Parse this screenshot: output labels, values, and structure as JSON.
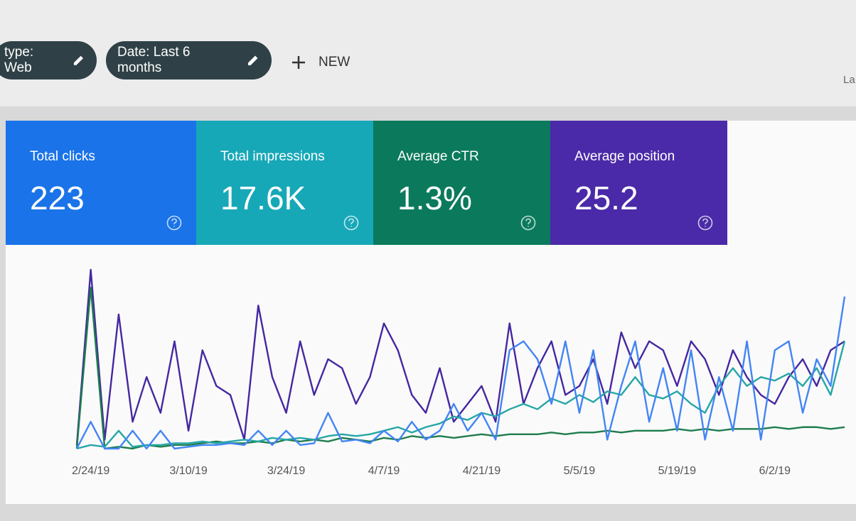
{
  "filters": [
    "type: Web",
    "Date: Last 6 months"
  ],
  "new_button": "NEW",
  "corner_text": "La",
  "cards": [
    {
      "label": "Total clicks",
      "value": "223",
      "color": "#1a73e8"
    },
    {
      "label": "Total impressions",
      "value": "17.6K",
      "color": "#17a8b8"
    },
    {
      "label": "Average CTR",
      "value": "1.3%",
      "color": "#0b7a5c"
    },
    {
      "label": "Average position",
      "value": "25.2",
      "color": "#4a2aa8"
    }
  ],
  "chart_data": {
    "type": "line",
    "x": [
      0,
      2,
      4,
      6,
      8,
      10,
      12,
      14,
      16,
      18,
      20,
      22,
      24,
      26,
      28,
      30,
      32,
      34,
      36,
      38,
      40,
      42,
      44,
      46,
      48,
      50,
      52,
      54,
      56,
      58,
      60,
      62,
      64,
      66,
      68,
      70,
      72,
      74,
      76,
      78,
      80,
      82,
      84,
      86,
      88,
      90,
      92,
      94,
      96,
      98,
      100,
      102,
      104,
      106,
      108,
      110
    ],
    "xlim": [
      0,
      110
    ],
    "ylim": [
      0,
      100
    ],
    "xticks": [
      {
        "value": 2,
        "label": "2/24/19"
      },
      {
        "value": 16,
        "label": "3/10/19"
      },
      {
        "value": 30,
        "label": "3/24/19"
      },
      {
        "value": 44,
        "label": "4/7/19"
      },
      {
        "value": 58,
        "label": "4/21/19"
      },
      {
        "value": 72,
        "label": "5/5/19"
      },
      {
        "value": 86,
        "label": "5/19/19"
      },
      {
        "value": 100,
        "label": "6/2/19"
      }
    ],
    "series": [
      {
        "color": "#4527a0",
        "values": [
          2,
          100,
          5,
          75,
          15,
          40,
          20,
          60,
          10,
          55,
          35,
          30,
          5,
          80,
          40,
          20,
          60,
          30,
          50,
          45,
          25,
          40,
          70,
          55,
          30,
          20,
          45,
          15,
          25,
          35,
          15,
          70,
          25,
          45,
          60,
          30,
          35,
          50,
          25,
          65,
          45,
          60,
          55,
          35,
          60,
          50,
          30,
          55,
          40,
          30,
          25,
          40,
          50,
          35,
          55,
          60
        ]
      },
      {
        "color": "#1e7d4e",
        "values": [
          0,
          90,
          0,
          1,
          0,
          2,
          1,
          2,
          2,
          3,
          4,
          3,
          3,
          4,
          3,
          5,
          4,
          5,
          4,
          6,
          5,
          4,
          6,
          5,
          7,
          6,
          7,
          6,
          7,
          8,
          7,
          8,
          8,
          8,
          9,
          8,
          9,
          9,
          10,
          9,
          10,
          10,
          10,
          11,
          10,
          11,
          10,
          11,
          11,
          11,
          12,
          11,
          12,
          12,
          11,
          12
        ]
      },
      {
        "color": "#26a6a6",
        "values": [
          0,
          2,
          1,
          10,
          1,
          2,
          2,
          3,
          3,
          4,
          3,
          4,
          5,
          4,
          6,
          5,
          6,
          5,
          7,
          8,
          7,
          8,
          10,
          12,
          9,
          12,
          14,
          18,
          16,
          20,
          18,
          22,
          25,
          22,
          28,
          25,
          30,
          26,
          32,
          30,
          40,
          30,
          28,
          32,
          25,
          20,
          35,
          45,
          35,
          40,
          38,
          42,
          35,
          45,
          30,
          60
        ]
      },
      {
        "color": "#4285f4",
        "values": [
          0,
          15,
          0,
          0,
          10,
          0,
          10,
          0,
          1,
          2,
          2,
          3,
          2,
          10,
          2,
          10,
          2,
          3,
          20,
          4,
          5,
          3,
          10,
          4,
          15,
          5,
          10,
          25,
          10,
          20,
          5,
          55,
          60,
          50,
          25,
          60,
          20,
          55,
          5,
          35,
          60,
          15,
          45,
          10,
          55,
          5,
          40,
          10,
          60,
          5,
          55,
          60,
          20,
          50,
          35,
          85
        ]
      }
    ]
  }
}
